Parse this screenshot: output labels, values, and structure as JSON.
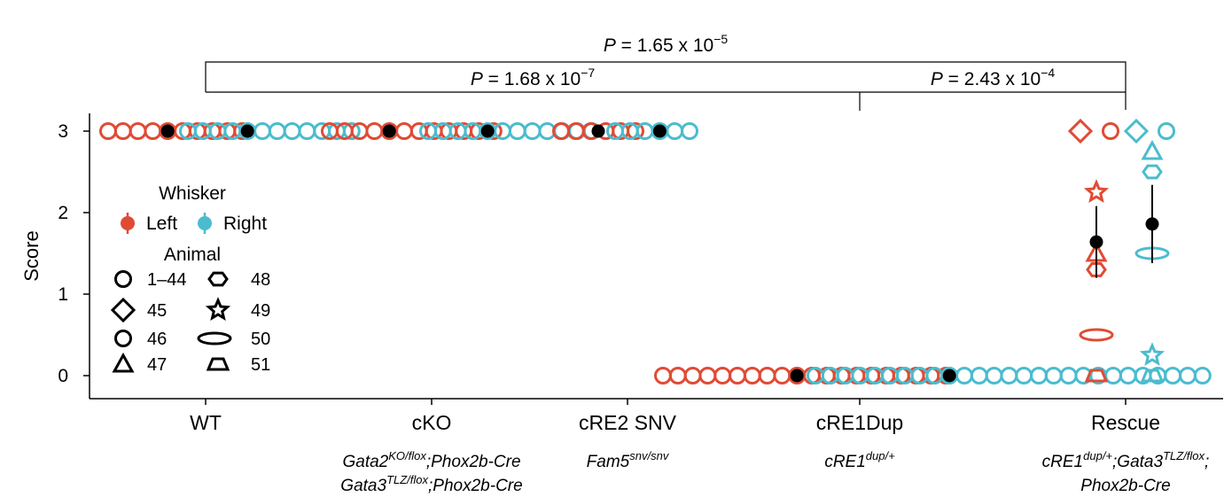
{
  "colors": {
    "left": "#e04b35",
    "right": "#4bbcce",
    "mean": "#000000"
  },
  "chart_data": {
    "type": "scatter",
    "ylabel": "Score",
    "ylim": [
      0,
      3
    ],
    "yticks": [
      "0",
      "1",
      "2",
      "3"
    ],
    "groups": [
      {
        "key": "wt",
        "label": "WT",
        "genotype": []
      },
      {
        "key": "cko",
        "label": "cKO",
        "genotype": [
          [
            [
              "Gata2",
              ""
            ],
            [
              "KO/flox",
              "sup"
            ],
            [
              ";Phox2b-Cre",
              ""
            ]
          ],
          [
            [
              "Gata3",
              ""
            ],
            [
              "TLZ/flox",
              "sup"
            ],
            [
              ";Phox2b-Cre",
              ""
            ]
          ]
        ]
      },
      {
        "key": "cre2",
        "label": "cRE2 SNV",
        "genotype": [
          [
            [
              "Fam5",
              ""
            ],
            [
              "snv/snv",
              "sup"
            ]
          ]
        ]
      },
      {
        "key": "cre1",
        "label": "cRE1Dup",
        "genotype": [
          [
            [
              "cRE1",
              ""
            ],
            [
              "dup/+",
              "sup"
            ]
          ]
        ]
      },
      {
        "key": "rescue",
        "label": "Rescue",
        "genotype": [
          [
            [
              "cRE1",
              ""
            ],
            [
              "dup/+",
              "sup"
            ],
            [
              ";Gata3",
              ""
            ],
            [
              "TLZ/flox",
              "sup"
            ],
            [
              ";",
              ""
            ]
          ],
          [
            [
              "Phox2b-Cre",
              ""
            ]
          ]
        ]
      }
    ],
    "series": [
      {
        "group": "wt",
        "side": "left",
        "scores": [
          3,
          3,
          3,
          3,
          3,
          3,
          3,
          3,
          3,
          3
        ],
        "mean": 3
      },
      {
        "group": "wt",
        "side": "right",
        "scores": [
          3,
          3,
          3,
          3,
          3,
          3,
          3,
          3,
          3,
          3,
          3,
          3
        ],
        "mean": 3
      },
      {
        "group": "cko",
        "side": "left",
        "scores": [
          3,
          3,
          3,
          3,
          3,
          3,
          3,
          3,
          3,
          3,
          3,
          3
        ],
        "mean": 3
      },
      {
        "group": "cko",
        "side": "right",
        "scores": [
          3,
          3,
          3,
          3,
          3,
          3,
          3,
          3,
          3,
          3,
          3,
          3
        ],
        "mean": 3
      },
      {
        "group": "cre2",
        "side": "left",
        "scores": [
          3,
          3,
          3,
          3,
          3,
          3
        ],
        "mean": 3
      },
      {
        "group": "cre2",
        "side": "right",
        "scores": [
          3,
          3,
          3,
          3,
          3,
          3
        ],
        "mean": 3
      },
      {
        "group": "cre1",
        "side": "left",
        "scores": [
          0,
          0,
          0,
          0,
          0,
          0,
          0,
          0,
          0,
          0,
          0,
          0,
          0,
          0,
          0,
          0,
          0,
          0,
          0,
          0
        ],
        "mean": 0
      },
      {
        "group": "cre1",
        "side": "right",
        "scores": [
          0,
          0,
          0,
          0,
          0,
          0,
          0,
          0,
          0,
          0,
          0,
          0,
          0,
          0,
          0,
          0,
          0,
          0,
          0,
          0,
          0,
          0,
          0,
          0,
          0,
          0,
          0
        ],
        "mean": 0
      }
    ],
    "rescue_points": [
      {
        "side": "left",
        "animal": "45",
        "shape": "diamond",
        "score": 3
      },
      {
        "side": "left",
        "animal": "46",
        "shape": "circle",
        "score": 3
      },
      {
        "side": "left",
        "animal": "49",
        "shape": "star",
        "score": 2.25
      },
      {
        "side": "left",
        "animal": "47",
        "shape": "triangle",
        "score": 1.5
      },
      {
        "side": "left",
        "animal": "48",
        "shape": "hexagon",
        "score": 1.3
      },
      {
        "side": "left",
        "animal": "50",
        "shape": "ellipse",
        "score": 0.5
      },
      {
        "side": "left",
        "animal": "51",
        "shape": "trapezoid",
        "score": 0
      },
      {
        "side": "right",
        "animal": "45",
        "shape": "diamond",
        "score": 3
      },
      {
        "side": "right",
        "animal": "46",
        "shape": "circle",
        "score": 3
      },
      {
        "side": "right",
        "animal": "47",
        "shape": "triangle",
        "score": 2.75
      },
      {
        "side": "right",
        "animal": "48",
        "shape": "hexagon",
        "score": 2.5
      },
      {
        "side": "right",
        "animal": "50",
        "shape": "ellipse",
        "score": 1.5
      },
      {
        "side": "right",
        "animal": "49",
        "shape": "star",
        "score": 0.25
      },
      {
        "side": "right",
        "animal": "51",
        "shape": "trapezoid",
        "score": 0
      }
    ],
    "rescue_summary": [
      {
        "side": "left",
        "mean": 1.64,
        "low": 1.2,
        "high": 2.08
      },
      {
        "side": "right",
        "mean": 1.86,
        "low": 1.38,
        "high": 2.34
      }
    ],
    "pvalues": [
      {
        "from": "wt",
        "to": "rescue",
        "mantissa": "P = 1.65 x 10",
        "exponent": "−5"
      },
      {
        "from": "wt",
        "to": "cre1",
        "mantissa": "P = 1.68 x 10",
        "exponent": "−7"
      },
      {
        "from": "cre1",
        "to": "rescue",
        "mantissa": "P = 2.43 x 10",
        "exponent": "−4"
      }
    ],
    "legend": {
      "placement": "left",
      "whisker_title": "Whisker",
      "whisker_items": [
        {
          "side": "left",
          "label": "Left"
        },
        {
          "side": "right",
          "label": "Right"
        }
      ],
      "animal_title": "Animal",
      "animal_items": [
        {
          "shape": "circle",
          "label": "1–44"
        },
        {
          "shape": "hexagon",
          "label": "48"
        },
        {
          "shape": "diamond",
          "label": "45"
        },
        {
          "shape": "star",
          "label": "49"
        },
        {
          "shape": "circle",
          "label": "46"
        },
        {
          "shape": "ellipse",
          "label": "50"
        },
        {
          "shape": "triangle",
          "label": "47"
        },
        {
          "shape": "trapezoid",
          "label": "51"
        }
      ]
    }
  }
}
